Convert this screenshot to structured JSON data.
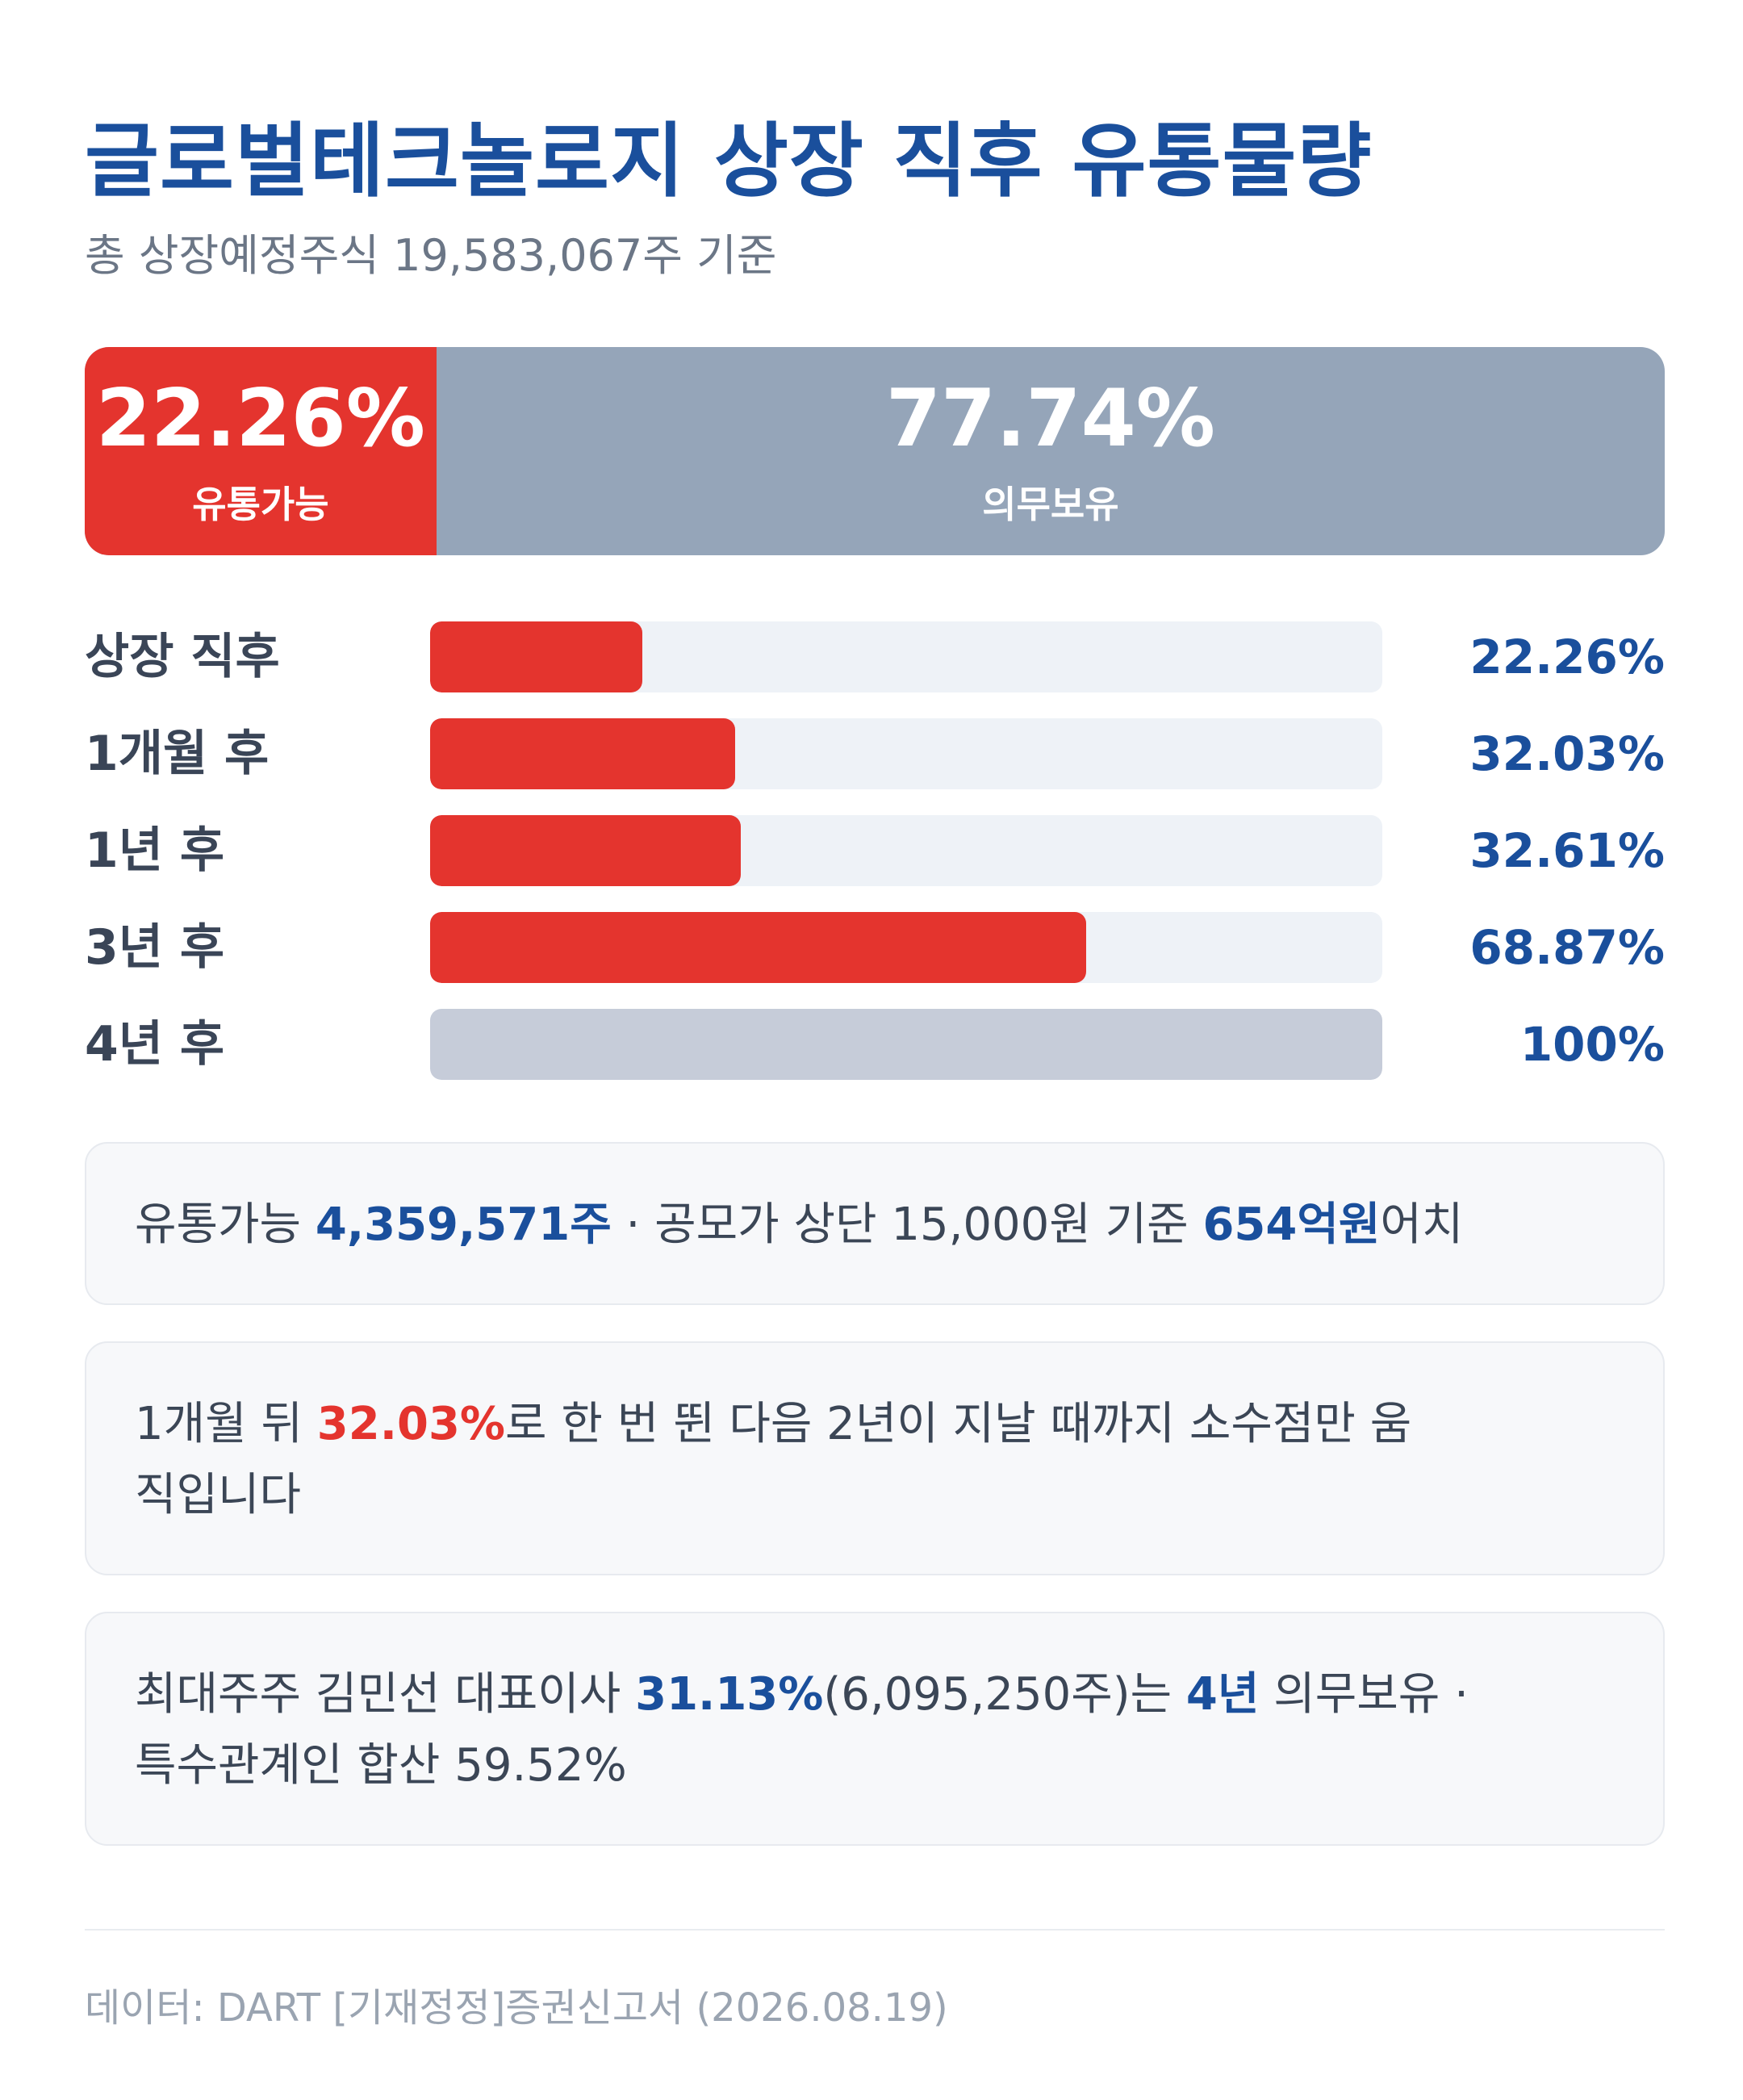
{
  "title": "글로벌테크놀로지 상장 직후 유통물량",
  "subtitle": "총 상장예정주식 19,583,067주 기준",
  "colors": {
    "accent_red": "#e4342e",
    "locked_gray": "#95a5b9",
    "full_bar_gray": "#c6ccd9",
    "track": "#eef2f7",
    "blue": "#1a4f9c"
  },
  "split": {
    "left": {
      "pct": "22.26%",
      "label": "유통가능",
      "value": 22.26
    },
    "right": {
      "pct": "77.74%",
      "label": "의무보유",
      "value": 77.74
    }
  },
  "chart_data": {
    "type": "bar",
    "orientation": "horizontal",
    "categories": [
      "상장 직후",
      "1개월 후",
      "1년 후",
      "3년 후",
      "4년 후"
    ],
    "values": [
      22.26,
      32.03,
      32.61,
      68.87,
      100
    ],
    "value_labels": [
      "22.26%",
      "32.03%",
      "32.61%",
      "68.87%",
      "100%"
    ],
    "xlim": [
      0,
      100
    ],
    "bar_colors": [
      "#e4342e",
      "#e4342e",
      "#e4342e",
      "#e4342e",
      "#c6ccd9"
    ],
    "title": "",
    "xlabel": "",
    "ylabel": ""
  },
  "cards": [
    {
      "segments": [
        {
          "text": "유통가능 ",
          "style": ""
        },
        {
          "text": "4,359,571주",
          "style": "blue"
        },
        {
          "text": " · 공모가 상단 15,000원 기준 ",
          "style": ""
        },
        {
          "text": "654억원",
          "style": "blue"
        },
        {
          "text": "어치",
          "style": ""
        }
      ]
    },
    {
      "segments": [
        {
          "text": "1개월 뒤 ",
          "style": ""
        },
        {
          "text": "32.03%",
          "style": "red"
        },
        {
          "text": "로 한 번 뛴 다음 2년이 지날 때까지 소수점만 움",
          "style": ""
        },
        {
          "text": "\n",
          "style": "br"
        },
        {
          "text": "직입니다",
          "style": ""
        }
      ]
    },
    {
      "segments": [
        {
          "text": "최대주주 김민선 대표이사 ",
          "style": ""
        },
        {
          "text": "31.13%",
          "style": "blue"
        },
        {
          "text": "(6,095,250주)는 ",
          "style": ""
        },
        {
          "text": "4년",
          "style": "blue"
        },
        {
          "text": " 의무보유 ·",
          "style": ""
        },
        {
          "text": "\n",
          "style": "br"
        },
        {
          "text": "특수관계인 합산 59.52%",
          "style": ""
        }
      ]
    }
  ],
  "source": "데이터: DART [기재정정]증권신고서 (2026.08.19)"
}
